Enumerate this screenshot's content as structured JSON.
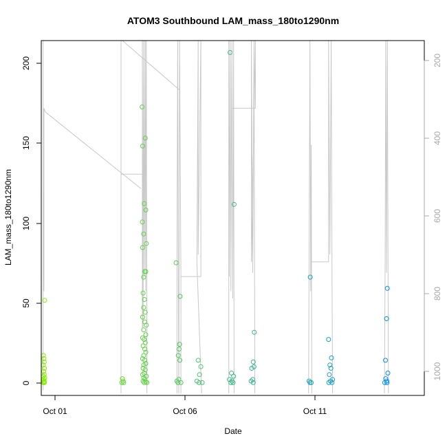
{
  "chart_data": {
    "type": "scatter",
    "title": "ATOM3 Southbound LAM_mass_180to1290nm",
    "xlabel": "Date",
    "ylabel": "LAM_mass_180to1290nm",
    "x_ticks": [
      "Oct 01",
      "Oct 06",
      "Oct 11"
    ],
    "y_ticks": [
      0,
      50,
      100,
      150,
      200
    ],
    "y2_ticks": [
      200,
      400,
      600,
      800,
      1000
    ],
    "xlim": [
      0.95,
      15.35
    ],
    "ylim": [
      -8,
      214
    ],
    "y2lim": [
      1085,
      115
    ],
    "grid": false,
    "legend": "none",
    "colors": {
      "axis": "#000000",
      "secondary_axis": "#a8a8a8",
      "trace": "#c8c8c8",
      "points_start": "#88ee00",
      "points_end": "#0090ee"
    },
    "series": [
      {
        "values": [
          {
            "x": 1.03,
            "y": 17
          },
          {
            "x": 1.05,
            "y": 15
          },
          {
            "x": 1.06,
            "y": 13
          },
          {
            "x": 1.03,
            "y": 11
          },
          {
            "x": 1.07,
            "y": 9
          },
          {
            "x": 1.04,
            "y": 7
          },
          {
            "x": 1.06,
            "y": 5
          },
          {
            "x": 1.03,
            "y": 4
          },
          {
            "x": 1.08,
            "y": 3
          },
          {
            "x": 1.04,
            "y": 2
          },
          {
            "x": 1.06,
            "y": 1
          },
          {
            "x": 1.05,
            "y": 0.5
          },
          {
            "x": 1.07,
            "y": 0
          },
          {
            "x": 1.03,
            "y": 0
          },
          {
            "x": 1.08,
            "y": 51.5
          },
          {
            "x": 4.0,
            "y": 2.5
          },
          {
            "x": 4.03,
            "y": 1
          },
          {
            "x": 3.98,
            "y": 0
          },
          {
            "x": 4.05,
            "y": 0
          },
          {
            "x": 4.74,
            "y": 172.5
          },
          {
            "x": 4.86,
            "y": 153
          },
          {
            "x": 4.76,
            "y": 148
          },
          {
            "x": 4.82,
            "y": 112
          },
          {
            "x": 4.88,
            "y": 108
          },
          {
            "x": 4.75,
            "y": 100.5
          },
          {
            "x": 4.8,
            "y": 93
          },
          {
            "x": 4.9,
            "y": 87
          },
          {
            "x": 4.76,
            "y": 84.5
          },
          {
            "x": 4.84,
            "y": 69.5
          },
          {
            "x": 4.88,
            "y": 69.5
          },
          {
            "x": 4.8,
            "y": 66
          },
          {
            "x": 4.78,
            "y": 56
          },
          {
            "x": 4.83,
            "y": 52
          },
          {
            "x": 4.8,
            "y": 47
          },
          {
            "x": 4.86,
            "y": 44
          },
          {
            "x": 4.76,
            "y": 41
          },
          {
            "x": 4.84,
            "y": 38
          },
          {
            "x": 4.9,
            "y": 36
          },
          {
            "x": 4.8,
            "y": 33
          },
          {
            "x": 4.88,
            "y": 30
          },
          {
            "x": 4.76,
            "y": 28
          },
          {
            "x": 4.82,
            "y": 27
          },
          {
            "x": 4.86,
            "y": 25
          },
          {
            "x": 4.78,
            "y": 23
          },
          {
            "x": 4.84,
            "y": 21
          },
          {
            "x": 4.88,
            "y": 19
          },
          {
            "x": 4.8,
            "y": 17
          },
          {
            "x": 4.76,
            "y": 15
          },
          {
            "x": 4.84,
            "y": 14
          },
          {
            "x": 4.88,
            "y": 12
          },
          {
            "x": 4.8,
            "y": 11
          },
          {
            "x": 4.78,
            "y": 9
          },
          {
            "x": 4.86,
            "y": 8
          },
          {
            "x": 4.82,
            "y": 6
          },
          {
            "x": 4.76,
            "y": 5
          },
          {
            "x": 4.9,
            "y": 4
          },
          {
            "x": 4.8,
            "y": 3
          },
          {
            "x": 4.84,
            "y": 2
          },
          {
            "x": 4.78,
            "y": 1
          },
          {
            "x": 4.88,
            "y": 0.5
          },
          {
            "x": 4.82,
            "y": 0
          },
          {
            "x": 4.92,
            "y": 0
          },
          {
            "x": 6.02,
            "y": 75
          },
          {
            "x": 6.17,
            "y": 54
          },
          {
            "x": 6.15,
            "y": 24
          },
          {
            "x": 6.13,
            "y": 21
          },
          {
            "x": 6.1,
            "y": 17
          },
          {
            "x": 6.16,
            "y": 14
          },
          {
            "x": 6.12,
            "y": 2
          },
          {
            "x": 6.05,
            "y": 1
          },
          {
            "x": 6.09,
            "y": 0
          },
          {
            "x": 6.2,
            "y": 0
          },
          {
            "x": 6.85,
            "y": 14
          },
          {
            "x": 6.95,
            "y": 10
          },
          {
            "x": 6.9,
            "y": 5
          },
          {
            "x": 6.8,
            "y": 1
          },
          {
            "x": 6.88,
            "y": 0
          },
          {
            "x": 7.0,
            "y": 0
          },
          {
            "x": 8.05,
            "y": 206.5
          },
          {
            "x": 8.2,
            "y": 111.5
          },
          {
            "x": 8.1,
            "y": 6
          },
          {
            "x": 8.18,
            "y": 4
          },
          {
            "x": 8.02,
            "y": 2
          },
          {
            "x": 8.12,
            "y": 1
          },
          {
            "x": 8.08,
            "y": 0
          },
          {
            "x": 8.16,
            "y": 0
          },
          {
            "x": 8.96,
            "y": 31.5
          },
          {
            "x": 8.92,
            "y": 13
          },
          {
            "x": 8.86,
            "y": 9
          },
          {
            "x": 8.95,
            "y": 10
          },
          {
            "x": 8.9,
            "y": 2
          },
          {
            "x": 8.84,
            "y": 1
          },
          {
            "x": 8.92,
            "y": 0
          },
          {
            "x": 11.06,
            "y": 66
          },
          {
            "x": 11.02,
            "y": 1
          },
          {
            "x": 11.1,
            "y": 0
          },
          {
            "x": 11.05,
            "y": 0
          },
          {
            "x": 11.75,
            "y": 27
          },
          {
            "x": 11.86,
            "y": 15.5
          },
          {
            "x": 11.8,
            "y": 11
          },
          {
            "x": 11.84,
            "y": 9
          },
          {
            "x": 11.78,
            "y": 5
          },
          {
            "x": 11.9,
            "y": 2
          },
          {
            "x": 11.82,
            "y": 1
          },
          {
            "x": 11.76,
            "y": 0
          },
          {
            "x": 11.88,
            "y": 0
          },
          {
            "x": 13.96,
            "y": 59
          },
          {
            "x": 13.93,
            "y": 40
          },
          {
            "x": 13.89,
            "y": 14
          },
          {
            "x": 13.98,
            "y": 6
          },
          {
            "x": 13.9,
            "y": 2.5
          },
          {
            "x": 13.94,
            "y": 1
          },
          {
            "x": 13.86,
            "y": 0
          },
          {
            "x": 13.95,
            "y": 0
          }
        ]
      }
    ]
  }
}
